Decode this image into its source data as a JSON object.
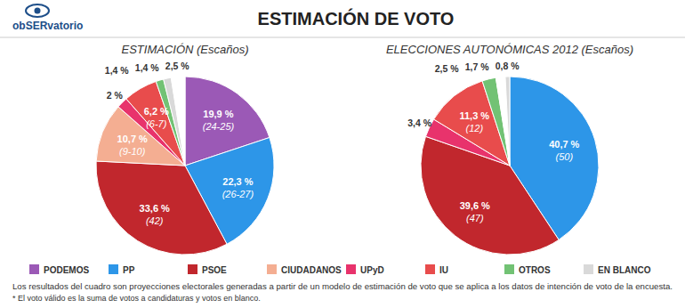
{
  "header": {
    "logo": "obSERvatorio",
    "title": "ESTIMACIÓN DE VOTO"
  },
  "chart_data": [
    {
      "type": "pie",
      "title": "ESTIMACIÓN (Escaños)",
      "categories": [
        "PODEMOS",
        "PP",
        "PSOE",
        "CIUDADANOS",
        "UPyD",
        "IU",
        "OTROS",
        "EN BLANCO",
        null
      ],
      "values": [
        19.9,
        22.3,
        33.6,
        10.7,
        2,
        6.2,
        1.4,
        1.4,
        2.5
      ],
      "value_labels": [
        "19,9 %",
        "22,3 %",
        "33,6 %",
        "10,7 %",
        "2 %",
        "6,2 %",
        "1,4 %",
        "1,4 %",
        "2,5 %"
      ],
      "seat_labels": [
        "(24-25)",
        "(26-27)",
        "(42)",
        "(9-10)",
        null,
        "(6-7)",
        null,
        null,
        null
      ],
      "colors": [
        "#9b59b6",
        "#2d96e8",
        "#c1272d",
        "#f4ae92",
        "#e8336c",
        "#e84c4c",
        "#72c274",
        "#d9d9d9",
        "#ffffff"
      ],
      "data_labels": true,
      "legend": "bottom"
    },
    {
      "type": "pie",
      "title": "ELECCIONES AUTONÓMICAS 2012 (Escaños)",
      "categories": [
        "PP",
        "PSOE",
        "UPyD",
        "IU",
        "OTROS",
        null,
        "EN BLANCO"
      ],
      "values": [
        40.7,
        39.6,
        3.4,
        11.3,
        2.5,
        1.7,
        0.8
      ],
      "value_labels": [
        "40,7 %",
        "39,6 %",
        "3,4 %",
        "11,3 %",
        "2,5 %",
        "1,7 %",
        "0,8 %"
      ],
      "seat_labels": [
        "(50)",
        "(47)",
        null,
        "(12)",
        null,
        null,
        null
      ],
      "colors": [
        "#2d96e8",
        "#c1272d",
        "#e8336c",
        "#e84c4c",
        "#72c274",
        "#ffffff",
        "#d9d9d9"
      ],
      "data_labels": true
    }
  ],
  "notes": [
    "Los resultados del cuadro son proyecciones electorales generadas a partir de un modelo de estimación de voto que se aplica a los datos de intención de voto de la encuesta.",
    "* El voto válido es la suma de votos a candidaturas y votos en blanco."
  ]
}
